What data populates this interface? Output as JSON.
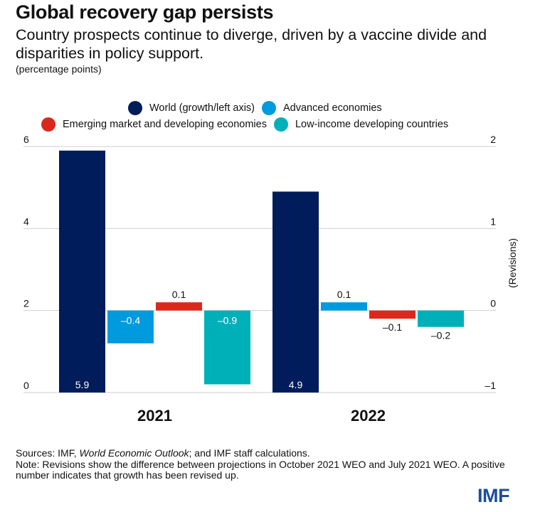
{
  "header": {
    "title": "Global recovery gap persists",
    "subtitle": "Country prospects continue to diverge, driven by a vaccine divide and disparities in policy support.",
    "units": "(percentage points)"
  },
  "chart_data": {
    "type": "bar",
    "title": "Global recovery gap persists",
    "subtitle": "Country prospects continue to diverge, driven by a vaccine divide and disparities in policy support.",
    "units": "(percentage points)",
    "categories": [
      "2021",
      "2022"
    ],
    "left_axis": {
      "label": "",
      "range": [
        0,
        6
      ],
      "ticks": [
        "0",
        "2",
        "4",
        "6"
      ],
      "tick_values": [
        0,
        2,
        4,
        6
      ]
    },
    "right_axis": {
      "label": "(Revisions)",
      "range": [
        -1,
        2
      ],
      "ticks": [
        "-1",
        "0",
        "1",
        "2"
      ],
      "tick_values": [
        -1,
        0,
        1,
        2
      ]
    },
    "grid": true,
    "legend_position": "top",
    "series": [
      {
        "name": "World (growth/left axis)",
        "axis": "left",
        "color": "#001c5a",
        "values": [
          5.9,
          4.9
        ],
        "labels": [
          "5.9",
          "4.9"
        ]
      },
      {
        "name": "Advanced economies",
        "axis": "right",
        "color": "#009ade",
        "values": [
          -0.4,
          0.1
        ],
        "labels": [
          "–0.4",
          "0.1"
        ]
      },
      {
        "name": "Emerging market and developing economies",
        "axis": "right",
        "color": "#da291c",
        "values": [
          0.1,
          -0.1
        ],
        "labels": [
          "0.1",
          "–0.1"
        ]
      },
      {
        "name": "Low-income developing countries",
        "axis": "right",
        "color": "#00b0b9",
        "values": [
          -0.9,
          -0.2
        ],
        "labels": [
          "–0.9",
          "–0.2"
        ]
      }
    ]
  },
  "legend": {
    "row1": [
      {
        "label": "World (growth/left axis)",
        "color": "#001c5a"
      },
      {
        "label": "Advanced economies",
        "color": "#009ade"
      }
    ],
    "row2": [
      {
        "label": "Emerging market and developing economies",
        "color": "#da291c"
      },
      {
        "label": "Low-income developing countries",
        "color": "#00b0b9"
      }
    ]
  },
  "footnote": {
    "sources_prefix": "Sources: IMF, ",
    "sources_italic": "World Economic Outlook",
    "sources_suffix": "; and IMF staff calculations.",
    "note": "Note: Revisions show the difference between projections in October 2021 WEO and July 2021 WEO. A positive number indicates that growth has been revised up."
  },
  "logo": "IMF"
}
